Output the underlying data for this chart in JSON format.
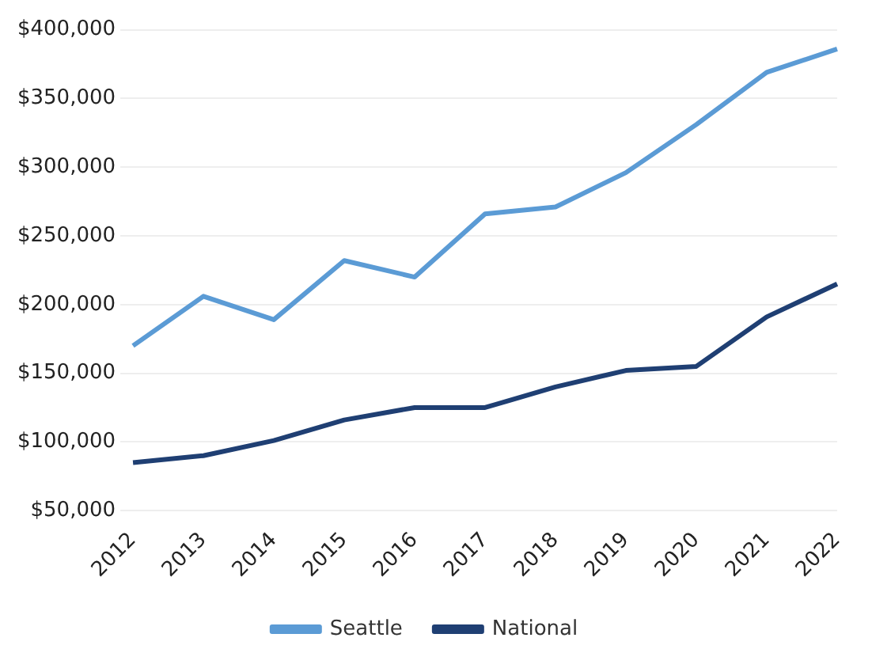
{
  "chart_data": {
    "type": "line",
    "categories": [
      "2012",
      "2013",
      "2014",
      "2015",
      "2016",
      "2017",
      "2018",
      "2019",
      "2020",
      "2021",
      "2022"
    ],
    "series": [
      {
        "name": "Seattle",
        "color": "#5b9bd5",
        "values": [
          170000,
          206000,
          189000,
          232000,
          220000,
          266000,
          271000,
          296000,
          331000,
          369000,
          386000
        ]
      },
      {
        "name": "National",
        "color": "#1f3f73",
        "values": [
          85000,
          90000,
          101000,
          116000,
          125000,
          125000,
          140000,
          152000,
          155000,
          191000,
          215000
        ]
      }
    ],
    "ylim": [
      50000,
      400000
    ],
    "yticks": [
      {
        "value": 50000,
        "label": "$50,000"
      },
      {
        "value": 100000,
        "label": "$100,000"
      },
      {
        "value": 150000,
        "label": "$150,000"
      },
      {
        "value": 200000,
        "label": "$200,000"
      },
      {
        "value": 250000,
        "label": "$250,000"
      },
      {
        "value": 300000,
        "label": "$300,000"
      },
      {
        "value": 350000,
        "label": "$350,000"
      },
      {
        "value": 400000,
        "label": "$400,000"
      }
    ],
    "grid": "y",
    "legend": "bottom",
    "marker": "none",
    "line_style": "solid"
  }
}
